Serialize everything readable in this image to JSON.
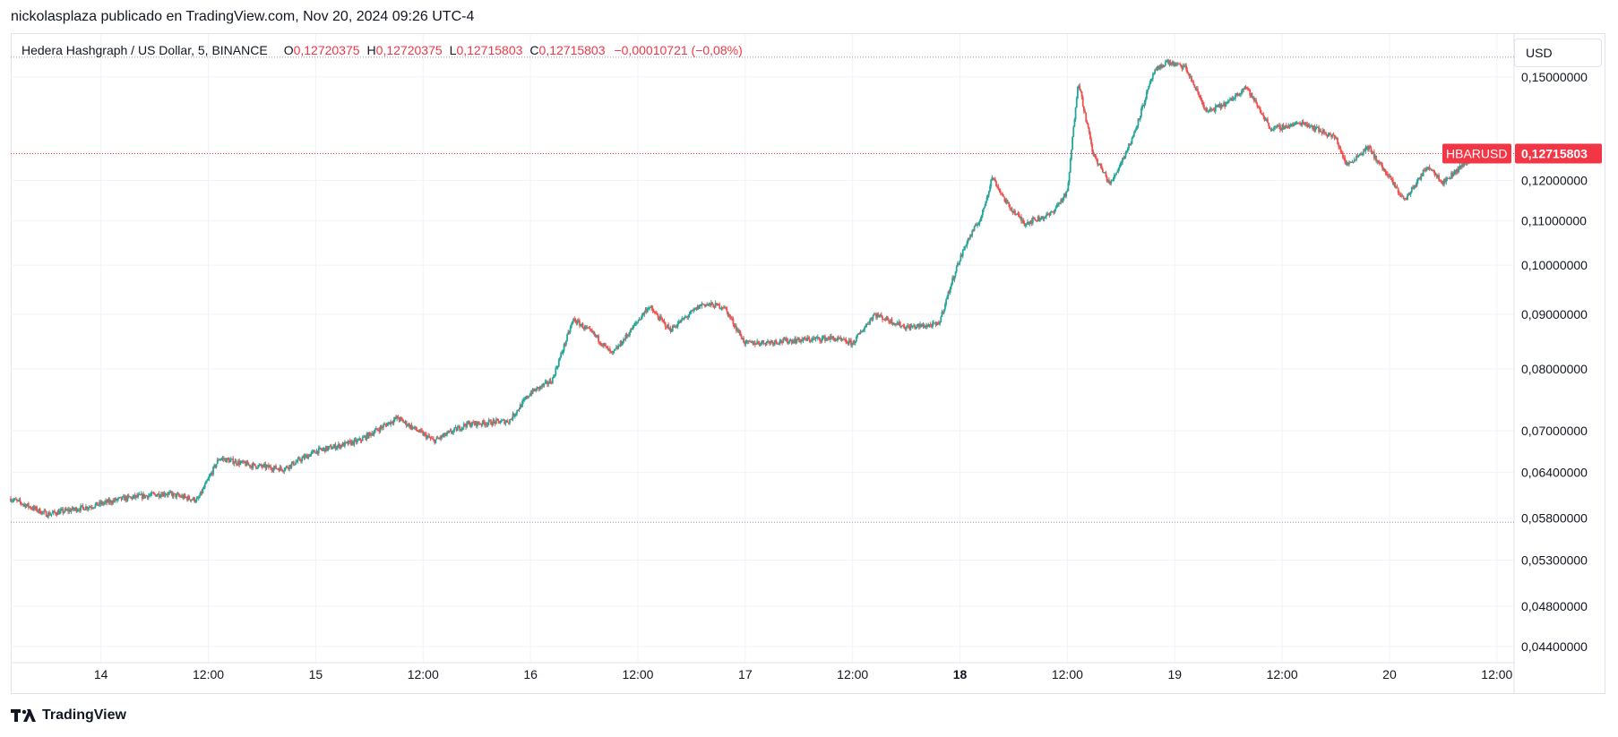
{
  "header": {
    "published_by": "nickolasplaza publicado en TradingView.com, Nov 20, 2024 09:26 UTC-4"
  },
  "legend": {
    "symbol": "Hedera Hashgraph / US Dollar, 5, BINANCE",
    "open_label": "O",
    "open_value": "0,12720375",
    "high_label": "H",
    "high_value": "0,12720375",
    "low_label": "L",
    "low_value": "0,12715803",
    "close_label": "C",
    "close_value": "0,12715803",
    "change": "−0,00010721 (−0,08%)"
  },
  "currency_button": {
    "label": "USD"
  },
  "last_price": {
    "symbol_tag": "HBARUSD",
    "value": "0,12715803"
  },
  "footer": {
    "brand": "TradingView"
  },
  "colors": {
    "up": "#26a69a",
    "down": "#ef5350",
    "grid": "#f0f3fa",
    "price_tag": "#f23645",
    "axis_text": "#131722"
  },
  "chart_data": {
    "type": "candlestick",
    "title": "Hedera Hashgraph / US Dollar, 5, BINANCE",
    "interval": "5",
    "exchange": "BINANCE",
    "y_scale": "log",
    "ylim": [
      0.0425,
      0.1645
    ],
    "y_ticks": [
      {
        "value": 0.15,
        "label": "0,15000000"
      },
      {
        "value": 0.12,
        "label": "0,12000000"
      },
      {
        "value": 0.11,
        "label": "0,11000000"
      },
      {
        "value": 0.1,
        "label": "0,10000000"
      },
      {
        "value": 0.09,
        "label": "0,09000000"
      },
      {
        "value": 0.08,
        "label": "0,08000000"
      },
      {
        "value": 0.07,
        "label": "0,07000000"
      },
      {
        "value": 0.064,
        "label": "0,06400000"
      },
      {
        "value": 0.058,
        "label": "0,05800000"
      },
      {
        "value": 0.053,
        "label": "0,05300000"
      },
      {
        "value": 0.048,
        "label": "0,04800000"
      },
      {
        "value": 0.044,
        "label": "0,04400000"
      }
    ],
    "x_range_days": [
      13.58,
      20.58
    ],
    "x_ticks": [
      {
        "day": 14.0,
        "label": "14",
        "bold": false
      },
      {
        "day": 14.5,
        "label": "12:00",
        "bold": false
      },
      {
        "day": 15.0,
        "label": "15",
        "bold": false
      },
      {
        "day": 15.5,
        "label": "12:00",
        "bold": false
      },
      {
        "day": 16.0,
        "label": "16",
        "bold": false
      },
      {
        "day": 16.5,
        "label": "12:00",
        "bold": false
      },
      {
        "day": 17.0,
        "label": "17",
        "bold": false
      },
      {
        "day": 17.5,
        "label": "12:00",
        "bold": false
      },
      {
        "day": 18.0,
        "label": "18",
        "bold": true
      },
      {
        "day": 18.5,
        "label": "12:00",
        "bold": false
      },
      {
        "day": 19.0,
        "label": "19",
        "bold": false
      },
      {
        "day": 19.5,
        "label": "12:00",
        "bold": false
      },
      {
        "day": 20.0,
        "label": "20",
        "bold": false
      },
      {
        "day": 20.5,
        "label": "12:00",
        "bold": false
      }
    ],
    "price_path": [
      [
        13.58,
        0.0605
      ],
      [
        13.75,
        0.0585
      ],
      [
        13.95,
        0.0595
      ],
      [
        14.1,
        0.0605
      ],
      [
        14.3,
        0.0612
      ],
      [
        14.45,
        0.0603
      ],
      [
        14.55,
        0.066
      ],
      [
        14.7,
        0.065
      ],
      [
        14.85,
        0.0645
      ],
      [
        15.0,
        0.067
      ],
      [
        15.2,
        0.0685
      ],
      [
        15.38,
        0.072
      ],
      [
        15.55,
        0.0685
      ],
      [
        15.7,
        0.071
      ],
      [
        15.9,
        0.0715
      ],
      [
        16.0,
        0.076
      ],
      [
        16.1,
        0.078
      ],
      [
        16.2,
        0.089
      ],
      [
        16.3,
        0.086
      ],
      [
        16.38,
        0.0825
      ],
      [
        16.45,
        0.086
      ],
      [
        16.55,
        0.0915
      ],
      [
        16.65,
        0.087
      ],
      [
        16.8,
        0.092
      ],
      [
        16.9,
        0.0915
      ],
      [
        17.0,
        0.0845
      ],
      [
        17.2,
        0.085
      ],
      [
        17.4,
        0.0855
      ],
      [
        17.5,
        0.0845
      ],
      [
        17.6,
        0.09
      ],
      [
        17.75,
        0.0875
      ],
      [
        17.9,
        0.088
      ],
      [
        17.98,
        0.099
      ],
      [
        18.03,
        0.105
      ],
      [
        18.1,
        0.111
      ],
      [
        18.15,
        0.121
      ],
      [
        18.22,
        0.114
      ],
      [
        18.3,
        0.1095
      ],
      [
        18.42,
        0.1115
      ],
      [
        18.5,
        0.117
      ],
      [
        18.55,
        0.149
      ],
      [
        18.62,
        0.127
      ],
      [
        18.7,
        0.119
      ],
      [
        18.8,
        0.131
      ],
      [
        18.9,
        0.151
      ],
      [
        18.96,
        0.155
      ],
      [
        19.05,
        0.153
      ],
      [
        19.15,
        0.139
      ],
      [
        19.25,
        0.142
      ],
      [
        19.33,
        0.147
      ],
      [
        19.45,
        0.134
      ],
      [
        19.6,
        0.136
      ],
      [
        19.75,
        0.1315
      ],
      [
        19.8,
        0.124
      ],
      [
        19.9,
        0.129
      ],
      [
        20.02,
        0.119
      ],
      [
        20.07,
        0.115
      ],
      [
        20.18,
        0.124
      ],
      [
        20.25,
        0.1195
      ],
      [
        20.4,
        0.1272
      ]
    ],
    "last_price_value": 0.12715803,
    "session_low": 0.0575,
    "session_high": 0.1565,
    "grid": true,
    "legend_position": "top-left"
  }
}
